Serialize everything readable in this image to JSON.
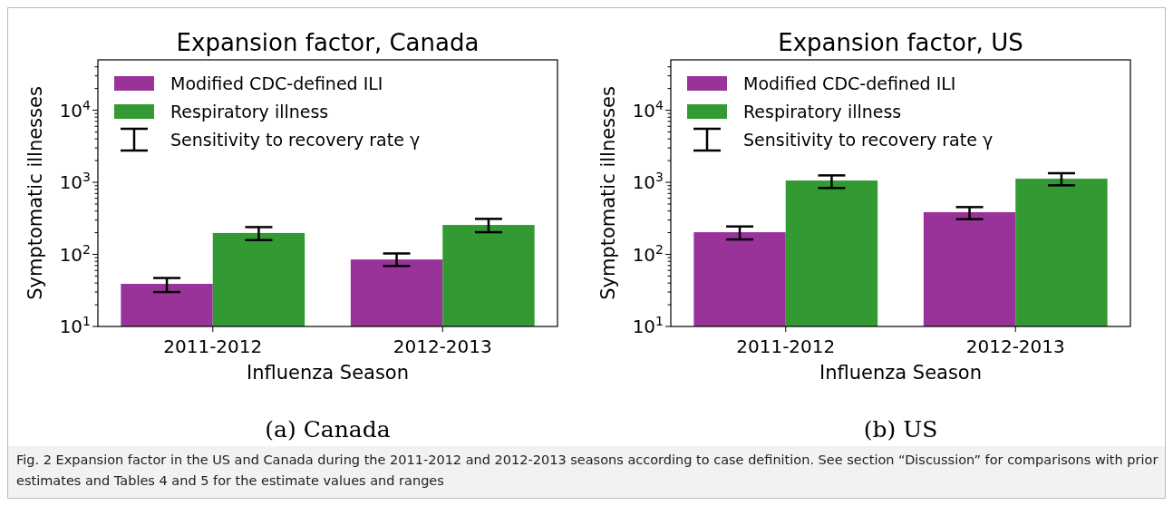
{
  "chart_data": [
    {
      "type": "bar",
      "title": "Expansion factor, Canada",
      "xlabel": "Influenza Season",
      "ylabel": "Symptomatic illnesses",
      "categories": [
        "2011-2012",
        "2012-2013"
      ],
      "series": [
        {
          "name": "Modified CDC-defined ILI",
          "color": "#993399",
          "values": [
            39,
            85
          ],
          "errors": [
            [
              30,
              47
            ],
            [
              69,
              103
            ]
          ]
        },
        {
          "name": "Respiratory illness",
          "color": "#339933",
          "values": [
            198,
            256
          ],
          "errors": [
            [
              158,
              239
            ],
            [
              203,
              311
            ]
          ]
        }
      ],
      "log": "y",
      "ylim": [
        10,
        50000
      ],
      "yticks": [
        {
          "value": 10,
          "label": "10$^{1}$"
        },
        {
          "value": 100,
          "label": "10$^{2}$"
        },
        {
          "value": 1000,
          "label": "10$^{3}$"
        },
        {
          "value": 10000,
          "label": "10$^{4}$"
        },
        {
          "value": 20,
          "label": null
        },
        {
          "value": 30,
          "label": null
        },
        {
          "value": 40,
          "label": null
        },
        {
          "value": 50,
          "label": null
        },
        {
          "value": 60,
          "label": null
        },
        {
          "value": 70,
          "label": null
        },
        {
          "value": 80,
          "label": null
        },
        {
          "value": 90,
          "label": null
        },
        {
          "value": 200,
          "label": null
        },
        {
          "value": 300,
          "label": null
        },
        {
          "value": 400,
          "label": null
        },
        {
          "value": 500,
          "label": null
        },
        {
          "value": 600,
          "label": null
        },
        {
          "value": 700,
          "label": null
        },
        {
          "value": 800,
          "label": null
        },
        {
          "value": 900,
          "label": null
        },
        {
          "value": 2000,
          "label": null
        },
        {
          "value": 3000,
          "label": null
        },
        {
          "value": 4000,
          "label": null
        },
        {
          "value": 5000,
          "label": null
        },
        {
          "value": 6000,
          "label": null
        },
        {
          "value": 7000,
          "label": null
        },
        {
          "value": 8000,
          "label": null
        },
        {
          "value": 9000,
          "label": null
        },
        {
          "value": 20000,
          "label": null
        },
        {
          "value": 30000,
          "label": null
        },
        {
          "value": 40000,
          "label": null
        }
      ],
      "grid": false,
      "legend": "top left",
      "annotations": [
        "Sensitivity to recovery rate γ",
        "(a) Canada"
      ]
    },
    {
      "type": "bar",
      "title": "Expansion factor, US",
      "xlabel": "Influenza Season",
      "ylabel": "Symptomatic illnesses",
      "categories": [
        "2011-2012",
        "2012-2013"
      ],
      "series": [
        {
          "name": "Modified CDC-defined ILI",
          "color": "#993399",
          "values": [
            203,
            385
          ],
          "errors": [
            [
              161,
              244
            ],
            [
              308,
              453
            ]
          ]
        },
        {
          "name": "Respiratory illness",
          "color": "#339933",
          "values": [
            1059,
            1122
          ],
          "errors": [
            [
              832,
              1247
            ],
            [
              908,
              1337
            ]
          ]
        }
      ],
      "log": "y",
      "ylim": [
        10,
        50000
      ],
      "yticks": [
        {
          "value": 10,
          "label": "10$^{1}$"
        },
        {
          "value": 100,
          "label": "10$^{2}$"
        },
        {
          "value": 1000,
          "label": "10$^{3}$"
        },
        {
          "value": 10000,
          "label": "10$^{4}$"
        },
        {
          "value": 20,
          "label": null
        },
        {
          "value": 30,
          "label": null
        },
        {
          "value": 40,
          "label": null
        },
        {
          "value": 50,
          "label": null
        },
        {
          "value": 60,
          "label": null
        },
        {
          "value": 70,
          "label": null
        },
        {
          "value": 80,
          "label": null
        },
        {
          "value": 90,
          "label": null
        },
        {
          "value": 200,
          "label": null
        },
        {
          "value": 300,
          "label": null
        },
        {
          "value": 400,
          "label": null
        },
        {
          "value": 500,
          "label": null
        },
        {
          "value": 600,
          "label": null
        },
        {
          "value": 700,
          "label": null
        },
        {
          "value": 800,
          "label": null
        },
        {
          "value": 900,
          "label": null
        },
        {
          "value": 2000,
          "label": null
        },
        {
          "value": 3000,
          "label": null
        },
        {
          "value": 4000,
          "label": null
        },
        {
          "value": 5000,
          "label": null
        },
        {
          "value": 6000,
          "label": null
        },
        {
          "value": 7000,
          "label": null
        },
        {
          "value": 8000,
          "label": null
        },
        {
          "value": 9000,
          "label": null
        },
        {
          "value": 20000,
          "label": null
        },
        {
          "value": 30000,
          "label": null
        },
        {
          "value": 40000,
          "label": null
        }
      ],
      "grid": false,
      "legend": "top left",
      "annotations": [
        "Sensitivity to recovery rate γ",
        "(b) US",
        "Fig. 2 Expansion factor in the US and Canada during the 2011-2012 and 2012-2013 seasons according to case definition. See section “Discussion” for comparisons with prior estimates and Tables 4 and 5 for the estimate values and ranges"
      ]
    }
  ]
}
